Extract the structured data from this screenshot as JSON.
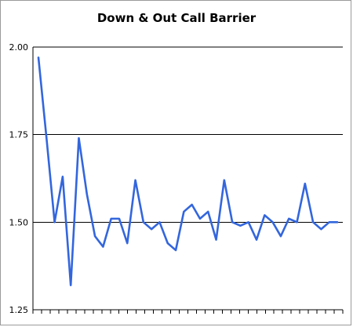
{
  "chart_data": {
    "type": "line",
    "title": "Down & Out Call Barrier",
    "xlabel": "",
    "ylabel": "",
    "ylim": [
      1.25,
      2.0
    ],
    "yticks": [
      1.25,
      1.5,
      1.75,
      2.0
    ],
    "ytick_labels": [
      "1.25",
      "1.50",
      "1.75",
      "2.00"
    ],
    "x_tick_count": 37,
    "grid": "horizontal",
    "legend": "none",
    "line_color": "#3366dd",
    "series": [
      {
        "values": [
          1.97,
          1.74,
          1.5,
          1.63,
          1.32,
          1.74,
          1.58,
          1.46,
          1.43,
          1.51,
          1.51,
          1.44,
          1.62,
          1.5,
          1.48,
          1.5,
          1.44,
          1.42,
          1.53,
          1.55,
          1.51,
          1.53,
          1.45,
          1.62,
          1.5,
          1.49,
          1.5,
          1.45,
          1.52,
          1.5,
          1.46,
          1.51,
          1.5,
          1.61,
          1.5,
          1.48,
          1.5,
          1.5
        ]
      }
    ]
  }
}
